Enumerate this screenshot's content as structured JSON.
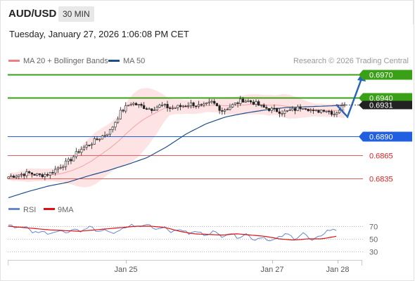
{
  "header": {
    "symbol": "AUD/USD",
    "timeframe": "30 MIN",
    "timestamp": "Tuesday, January 27, 2026 1:06:08 PM CET"
  },
  "colors": {
    "price": "#222222",
    "bollinger": "#f4a3a3",
    "bollinger_fill": "#fde3e3",
    "ma50": "#1f4e8c",
    "green_level": "#3aa017",
    "blue_level": "#2060e0",
    "red_level": "#e06060",
    "rsi": "#6688cc",
    "rsi_ma": "#dd1111",
    "arrow": "#2a66b8"
  },
  "chart_data": [
    {
      "type": "candlestick",
      "legend": [
        "MA 20 + Bollinger Bands",
        "MA 50"
      ],
      "credit": "Research © 2026 Trading Central",
      "x_ticks": [
        "Jan 25",
        "Jan 27",
        "Jan 28"
      ],
      "ylim": [
        0.682,
        0.699
      ],
      "levels": [
        {
          "value": 0.697,
          "label": "0.6970",
          "kind": "resistance"
        },
        {
          "value": 0.694,
          "label": "0.6940",
          "kind": "target"
        },
        {
          "value": 0.689,
          "label": "0.6890",
          "kind": "pivot"
        },
        {
          "value": 0.6865,
          "label": "0.6865",
          "kind": "support"
        },
        {
          "value": 0.6835,
          "label": "0.6835",
          "kind": "support"
        }
      ],
      "last_price": {
        "value": 0.6931,
        "label": "0.6931"
      },
      "scenario": [
        "0.6931",
        "0.6915",
        "0.6970"
      ],
      "close_anchors": [
        0.6837,
        0.684,
        0.6842,
        0.6839,
        0.6841,
        0.685,
        0.6858,
        0.6872,
        0.688,
        0.6888,
        0.6897,
        0.6921,
        0.6933,
        0.6929,
        0.6925,
        0.693,
        0.6926,
        0.6929,
        0.6932,
        0.6928,
        0.6934,
        0.6923,
        0.693,
        0.6937,
        0.6934,
        0.6927,
        0.6924,
        0.6921,
        0.6924,
        0.6929,
        0.6921,
        0.6925,
        0.6919,
        0.6931
      ],
      "ma50_anchors": [
        0.681,
        0.6818,
        0.6825,
        0.683,
        0.6838,
        0.6845,
        0.6853,
        0.6862,
        0.6876,
        0.6893,
        0.6906,
        0.6915,
        0.692,
        0.6924,
        0.6927,
        0.6928,
        0.6929,
        0.693
      ]
    },
    {
      "type": "line",
      "legend": [
        "RSI",
        "9MA"
      ],
      "y_ticks": [
        "70",
        "50",
        "30"
      ],
      "ylim": [
        20,
        80
      ],
      "rsi_anchors": [
        72,
        68,
        70,
        60,
        62,
        58,
        64,
        60,
        66,
        62,
        70,
        60,
        64,
        58,
        66,
        72,
        68,
        74,
        65,
        70,
        60,
        66,
        58,
        62,
        56,
        62,
        54,
        60,
        52,
        58,
        48,
        54,
        46,
        52,
        58,
        50,
        60,
        46,
        54,
        64,
        64
      ],
      "ma9_anchors": [
        70,
        68,
        66,
        64,
        63,
        62,
        64,
        66,
        68,
        70,
        70,
        68,
        62,
        58,
        57,
        56,
        58,
        56,
        54,
        50,
        48,
        50,
        50,
        54
      ]
    }
  ]
}
